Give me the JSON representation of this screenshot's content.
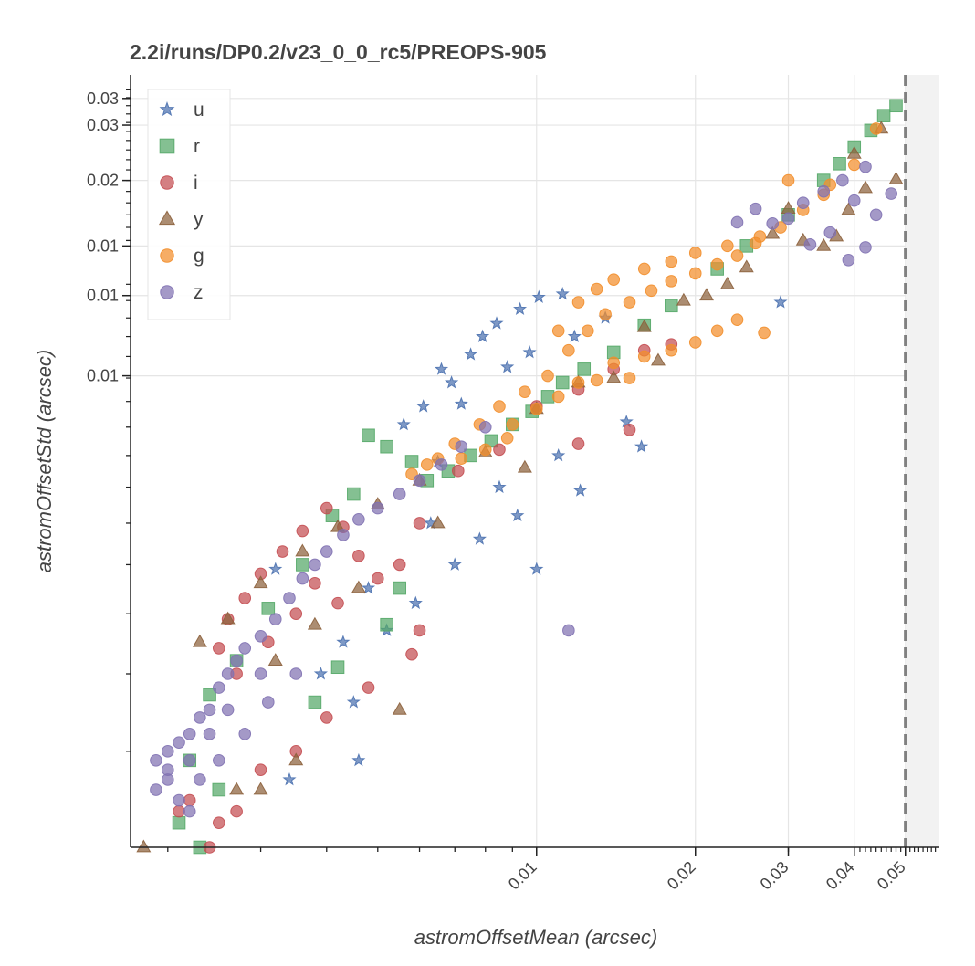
{
  "chart_data": {
    "type": "scatter",
    "title": "2.2i/runs/DP0.2/v23_0_0_rc5/PREOPS-905",
    "xlabel": "astromOffsetMean (arcsec)",
    "ylabel": "astromOffsetStd (arcsec)",
    "x_scale": "log",
    "y_scale": "log",
    "xlim": [
      0.0017,
      0.058
    ],
    "ylim": [
      0.0021,
      0.037
    ],
    "x_major_ticks": [
      {
        "value": 0.01,
        "label": "0.01"
      },
      {
        "value": 0.02,
        "label": "0.02"
      },
      {
        "value": 0.03,
        "label": "0.03"
      },
      {
        "value": 0.04,
        "label": "0.04"
      },
      {
        "value": 0.05,
        "label": "0.05"
      }
    ],
    "y_major_ticks": [
      {
        "value": 0.0339,
        "label": "0.03"
      },
      {
        "value": 0.0307,
        "label": "0.03"
      },
      {
        "value": 0.025,
        "label": "0.02"
      },
      {
        "value": 0.0196,
        "label": "0.01"
      },
      {
        "value": 0.0163,
        "label": "0.01"
      },
      {
        "value": 0.0121,
        "label": "0.01"
      }
    ],
    "grid": true,
    "legend_position": "top-left",
    "threshold_line": {
      "x": 0.05,
      "style": "dashed",
      "color": "#808080"
    },
    "shaded_region": {
      "x_from": 0.05,
      "x_to": 0.058,
      "color": "#f2f2f2"
    },
    "series": [
      {
        "name": "u",
        "marker": "star",
        "color": "#4c72b0",
        "points": [
          [
            0.0112,
            0.0164
          ],
          [
            0.0084,
            0.0147
          ],
          [
            0.0075,
            0.0131
          ],
          [
            0.0069,
            0.0118
          ],
          [
            0.0061,
            0.0108
          ],
          [
            0.0056,
            0.0101
          ],
          [
            0.0101,
            0.0162
          ],
          [
            0.0093,
            0.0155
          ],
          [
            0.0079,
            0.014
          ],
          [
            0.0066,
            0.0124
          ],
          [
            0.0148,
            0.0102
          ],
          [
            0.0158,
            0.0093
          ],
          [
            0.0121,
            0.0079
          ],
          [
            0.0092,
            0.0072
          ],
          [
            0.0078,
            0.0066
          ],
          [
            0.007,
            0.006
          ],
          [
            0.0048,
            0.0055
          ],
          [
            0.0043,
            0.0045
          ],
          [
            0.0039,
            0.004
          ],
          [
            0.0046,
            0.0029
          ],
          [
            0.0034,
            0.0027
          ],
          [
            0.0032,
            0.0059
          ],
          [
            0.011,
            0.009
          ],
          [
            0.0085,
            0.008
          ],
          [
            0.0063,
            0.007
          ],
          [
            0.0059,
            0.0052
          ],
          [
            0.0052,
            0.0047
          ],
          [
            0.0088,
            0.0125
          ],
          [
            0.0097,
            0.0132
          ],
          [
            0.0118,
            0.014
          ],
          [
            0.0135,
            0.015
          ],
          [
            0.029,
            0.0159
          ],
          [
            0.0072,
            0.0109
          ],
          [
            0.0065,
            0.0088
          ],
          [
            0.01,
            0.0059
          ],
          [
            0.0045,
            0.0036
          ]
        ]
      },
      {
        "name": "r",
        "marker": "square",
        "color": "#55a868",
        "points": [
          [
            0.048,
            0.033
          ],
          [
            0.0455,
            0.0318
          ],
          [
            0.043,
            0.0301
          ],
          [
            0.04,
            0.0283
          ],
          [
            0.0375,
            0.0266
          ],
          [
            0.035,
            0.025
          ],
          [
            0.0048,
            0.0097
          ],
          [
            0.0052,
            0.0093
          ],
          [
            0.0058,
            0.0088
          ],
          [
            0.0062,
            0.0082
          ],
          [
            0.0068,
            0.0085
          ],
          [
            0.0075,
            0.009
          ],
          [
            0.0082,
            0.0095
          ],
          [
            0.009,
            0.0101
          ],
          [
            0.0098,
            0.0106
          ],
          [
            0.0105,
            0.0112
          ],
          [
            0.0112,
            0.0118
          ],
          [
            0.0123,
            0.0124
          ],
          [
            0.014,
            0.0132
          ],
          [
            0.016,
            0.0146
          ],
          [
            0.018,
            0.0157
          ],
          [
            0.022,
            0.018
          ],
          [
            0.025,
            0.0196
          ],
          [
            0.03,
            0.022
          ],
          [
            0.0045,
            0.0078
          ],
          [
            0.0041,
            0.0072
          ],
          [
            0.0036,
            0.006
          ],
          [
            0.0031,
            0.0051
          ],
          [
            0.0027,
            0.0042
          ],
          [
            0.0024,
            0.0037
          ],
          [
            0.0022,
            0.0029
          ],
          [
            0.0025,
            0.0026
          ],
          [
            0.0021,
            0.0023
          ],
          [
            0.0023,
            0.0021
          ],
          [
            0.0052,
            0.0048
          ],
          [
            0.0038,
            0.0036
          ],
          [
            0.0042,
            0.0041
          ],
          [
            0.0055,
            0.0055
          ]
        ]
      },
      {
        "name": "i",
        "marker": "circle",
        "color": "#c44e52",
        "points": [
          [
            0.003,
            0.0058
          ],
          [
            0.0033,
            0.0063
          ],
          [
            0.0036,
            0.0068
          ],
          [
            0.004,
            0.0074
          ],
          [
            0.0043,
            0.0069
          ],
          [
            0.0046,
            0.0062
          ],
          [
            0.0028,
            0.0053
          ],
          [
            0.0026,
            0.0049
          ],
          [
            0.0025,
            0.0044
          ],
          [
            0.0027,
            0.004
          ],
          [
            0.0031,
            0.0045
          ],
          [
            0.0035,
            0.005
          ],
          [
            0.0038,
            0.0056
          ],
          [
            0.0042,
            0.0052
          ],
          [
            0.005,
            0.0057
          ],
          [
            0.0055,
            0.006
          ],
          [
            0.006,
            0.007
          ],
          [
            0.0071,
            0.0085
          ],
          [
            0.0085,
            0.0092
          ],
          [
            0.01,
            0.0108
          ],
          [
            0.012,
            0.0115
          ],
          [
            0.014,
            0.0124
          ],
          [
            0.016,
            0.0133
          ],
          [
            0.018,
            0.0136
          ],
          [
            0.015,
            0.0099
          ],
          [
            0.012,
            0.0094
          ],
          [
            0.006,
            0.0047
          ],
          [
            0.0058,
            0.0043
          ],
          [
            0.0048,
            0.0038
          ],
          [
            0.004,
            0.0034
          ],
          [
            0.0035,
            0.003
          ],
          [
            0.003,
            0.0028
          ],
          [
            0.0025,
            0.0023
          ],
          [
            0.0022,
            0.0025
          ],
          [
            0.0021,
            0.0024
          ],
          [
            0.0024,
            0.0021
          ],
          [
            0.0027,
            0.0024
          ]
        ]
      },
      {
        "name": "y",
        "marker": "triangle",
        "color": "#8c613c",
        "points": [
          [
            0.0018,
            0.0021
          ],
          [
            0.045,
            0.0303
          ],
          [
            0.048,
            0.0251
          ],
          [
            0.042,
            0.0243
          ],
          [
            0.04,
            0.0276
          ],
          [
            0.039,
            0.0224
          ],
          [
            0.037,
            0.0203
          ],
          [
            0.035,
            0.0196
          ],
          [
            0.032,
            0.02
          ],
          [
            0.03,
            0.0225
          ],
          [
            0.028,
            0.0205
          ],
          [
            0.025,
            0.0181
          ],
          [
            0.023,
            0.017
          ],
          [
            0.021,
            0.0163
          ],
          [
            0.019,
            0.016
          ],
          [
            0.016,
            0.0145
          ],
          [
            0.012,
            0.0118
          ],
          [
            0.01,
            0.0107
          ],
          [
            0.008,
            0.0091
          ],
          [
            0.006,
            0.0082
          ],
          [
            0.005,
            0.0075
          ],
          [
            0.0042,
            0.0069
          ],
          [
            0.0036,
            0.0063
          ],
          [
            0.003,
            0.0056
          ],
          [
            0.0026,
            0.0049
          ],
          [
            0.0023,
            0.0045
          ],
          [
            0.0055,
            0.0035
          ],
          [
            0.0035,
            0.0029
          ],
          [
            0.003,
            0.0026
          ],
          [
            0.0027,
            0.0026
          ],
          [
            0.017,
            0.0128
          ],
          [
            0.014,
            0.012
          ],
          [
            0.0095,
            0.0086
          ],
          [
            0.0065,
            0.007
          ],
          [
            0.0046,
            0.0055
          ],
          [
            0.0038,
            0.0048
          ],
          [
            0.0032,
            0.0042
          ]
        ]
      },
      {
        "name": "g",
        "marker": "circle",
        "color": "#f28e2b",
        "points": [
          [
            0.0058,
            0.0084
          ],
          [
            0.0065,
            0.0089
          ],
          [
            0.007,
            0.0094
          ],
          [
            0.0078,
            0.0101
          ],
          [
            0.0085,
            0.0108
          ],
          [
            0.0095,
            0.0114
          ],
          [
            0.0105,
            0.0121
          ],
          [
            0.0115,
            0.0133
          ],
          [
            0.0125,
            0.0143
          ],
          [
            0.0135,
            0.0152
          ],
          [
            0.015,
            0.0159
          ],
          [
            0.0165,
            0.0166
          ],
          [
            0.018,
            0.0172
          ],
          [
            0.02,
            0.0177
          ],
          [
            0.022,
            0.0183
          ],
          [
            0.024,
            0.0189
          ],
          [
            0.0265,
            0.0203
          ],
          [
            0.029,
            0.021
          ],
          [
            0.032,
            0.0224
          ],
          [
            0.035,
            0.0237
          ],
          [
            0.011,
            0.0143
          ],
          [
            0.012,
            0.0159
          ],
          [
            0.013,
            0.0167
          ],
          [
            0.014,
            0.0173
          ],
          [
            0.016,
            0.018
          ],
          [
            0.018,
            0.0185
          ],
          [
            0.02,
            0.0191
          ],
          [
            0.023,
            0.0196
          ],
          [
            0.026,
            0.0198
          ],
          [
            0.03,
            0.025
          ],
          [
            0.036,
            0.0246
          ],
          [
            0.04,
            0.0265
          ],
          [
            0.044,
            0.0303
          ],
          [
            0.027,
            0.0142
          ],
          [
            0.024,
            0.0149
          ],
          [
            0.022,
            0.0143
          ],
          [
            0.02,
            0.0137
          ],
          [
            0.018,
            0.0133
          ],
          [
            0.016,
            0.013
          ],
          [
            0.014,
            0.0127
          ],
          [
            0.012,
            0.0118
          ],
          [
            0.01,
            0.0107
          ],
          [
            0.0088,
            0.0096
          ],
          [
            0.008,
            0.0092
          ],
          [
            0.0072,
            0.0089
          ],
          [
            0.0062,
            0.0087
          ],
          [
            0.009,
            0.0101
          ],
          [
            0.011,
            0.0112
          ],
          [
            0.013,
            0.0119
          ],
          [
            0.015,
            0.012
          ]
        ]
      },
      {
        "name": "z",
        "marker": "circle",
        "color": "#8172b2",
        "points": [
          [
            0.002,
            0.003
          ],
          [
            0.0021,
            0.0031
          ],
          [
            0.0022,
            0.0032
          ],
          [
            0.0023,
            0.0034
          ],
          [
            0.0024,
            0.0035
          ],
          [
            0.0025,
            0.0038
          ],
          [
            0.0026,
            0.004
          ],
          [
            0.0027,
            0.0042
          ],
          [
            0.0028,
            0.0044
          ],
          [
            0.003,
            0.0046
          ],
          [
            0.0032,
            0.0049
          ],
          [
            0.0034,
            0.0053
          ],
          [
            0.0036,
            0.0057
          ],
          [
            0.0038,
            0.006
          ],
          [
            0.004,
            0.0063
          ],
          [
            0.0043,
            0.0067
          ],
          [
            0.0046,
            0.0071
          ],
          [
            0.005,
            0.0074
          ],
          [
            0.0055,
            0.0078
          ],
          [
            0.006,
            0.0082
          ],
          [
            0.0066,
            0.0087
          ],
          [
            0.0072,
            0.0093
          ],
          [
            0.008,
            0.01
          ],
          [
            0.0019,
            0.0026
          ],
          [
            0.002,
            0.0027
          ],
          [
            0.0021,
            0.0025
          ],
          [
            0.0022,
            0.0024
          ],
          [
            0.0023,
            0.0027
          ],
          [
            0.0025,
            0.0029
          ],
          [
            0.0028,
            0.0032
          ],
          [
            0.0031,
            0.0036
          ],
          [
            0.0035,
            0.004
          ],
          [
            0.003,
            0.004
          ],
          [
            0.0026,
            0.0035
          ],
          [
            0.0024,
            0.0032
          ],
          [
            0.0022,
            0.0029
          ],
          [
            0.002,
            0.0028
          ],
          [
            0.0019,
            0.0029
          ],
          [
            0.0115,
            0.0047
          ],
          [
            0.047,
            0.0238
          ],
          [
            0.042,
            0.0263
          ],
          [
            0.038,
            0.025
          ],
          [
            0.035,
            0.024
          ],
          [
            0.032,
            0.023
          ],
          [
            0.03,
            0.0217
          ],
          [
            0.028,
            0.0213
          ],
          [
            0.026,
            0.0225
          ],
          [
            0.024,
            0.0214
          ],
          [
            0.044,
            0.022
          ],
          [
            0.04,
            0.0232
          ],
          [
            0.036,
            0.0206
          ],
          [
            0.033,
            0.0197
          ],
          [
            0.042,
            0.0195
          ],
          [
            0.039,
            0.0186
          ]
        ]
      }
    ]
  }
}
